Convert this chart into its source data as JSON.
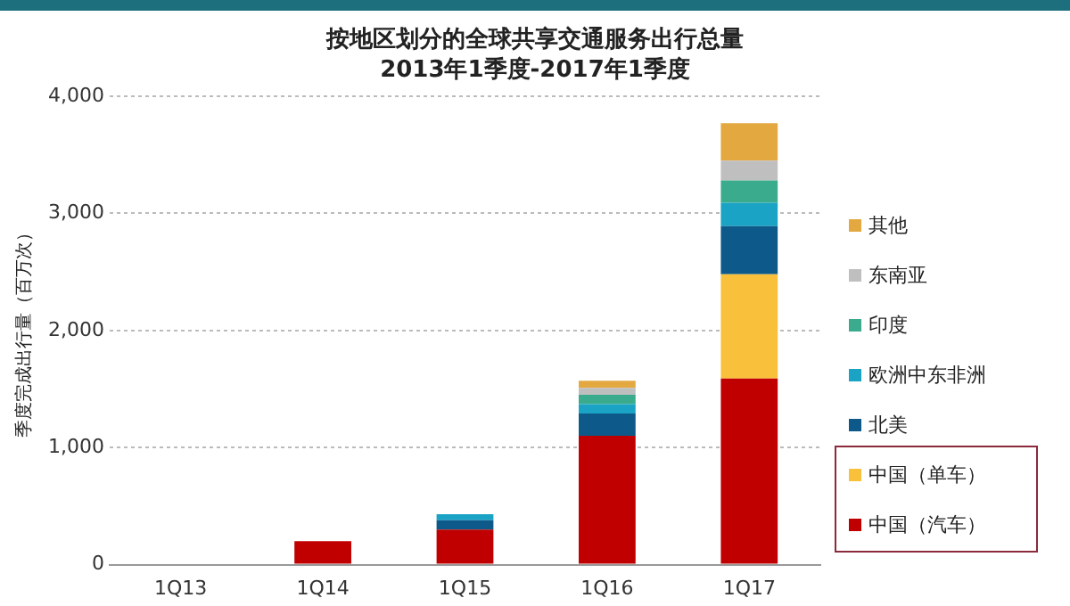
{
  "chart_data": {
    "type": "bar",
    "stacked": true,
    "title": "按地区划分的全球共享交通服务出行总量",
    "subtitle": "2013年1季度-2017年1季度",
    "ylabel": "季度完成出行量（百万次）",
    "categories": [
      "1Q13",
      "1Q14",
      "1Q15",
      "1Q16",
      "1Q17"
    ],
    "series": [
      {
        "name": "中国（汽车）",
        "color": "#c00000",
        "values": [
          0,
          200,
          300,
          1100,
          1590
        ]
      },
      {
        "name": "中国（单车）",
        "color": "#f9c03c",
        "values": [
          0,
          0,
          0,
          0,
          890
        ]
      },
      {
        "name": "北美",
        "color": "#0d5a8a",
        "values": [
          0,
          0,
          80,
          190,
          410
        ]
      },
      {
        "name": "欧洲中东非洲",
        "color": "#1aa3c4",
        "values": [
          0,
          0,
          50,
          80,
          200
        ]
      },
      {
        "name": "印度",
        "color": "#3aab8c",
        "values": [
          0,
          0,
          0,
          80,
          190
        ]
      },
      {
        "name": "东南亚",
        "color": "#bfbfbf",
        "values": [
          0,
          0,
          0,
          60,
          170
        ]
      },
      {
        "name": "其他",
        "color": "#e3a840",
        "values": [
          0,
          0,
          0,
          60,
          320
        ]
      }
    ],
    "ylim": [
      0,
      4000
    ],
    "yticks": [
      0,
      {
        "value": 1000,
        "label": "1,000"
      },
      {
        "value": 2000,
        "label": "2,000"
      },
      {
        "value": 3000,
        "label": "3,000"
      },
      {
        "value": 4000,
        "label": "4,000"
      }
    ],
    "grid": "y",
    "legend": "right"
  }
}
